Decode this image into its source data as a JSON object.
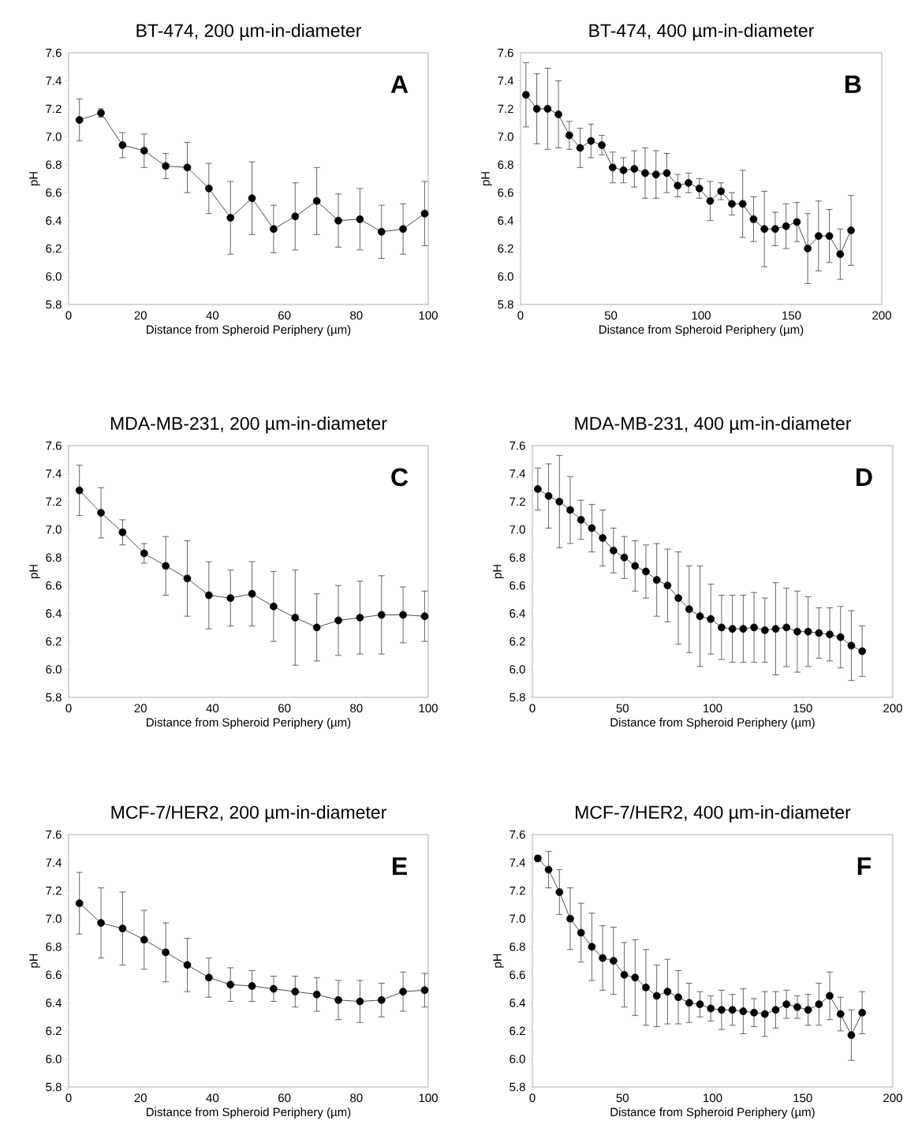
{
  "chart_data": [
    {
      "type": "line",
      "title": "BT-474, 200 µm-in-diameter",
      "xlabel": "Distance from Spheroid Periphery (µm)",
      "ylabel": "pH",
      "annotations": [
        "A"
      ],
      "color": "#000000",
      "marker": "circle",
      "x": [
        3,
        9,
        15,
        21,
        27,
        33,
        39,
        45,
        51,
        57,
        63,
        69,
        75,
        81,
        87,
        93,
        99
      ],
      "values": [
        7.12,
        7.17,
        6.94,
        6.9,
        6.79,
        6.78,
        6.63,
        6.42,
        6.56,
        6.34,
        6.43,
        6.54,
        6.4,
        6.41,
        6.32,
        6.34,
        6.45
      ],
      "errors": [
        0.15,
        0.03,
        0.09,
        0.12,
        0.09,
        0.18,
        0.18,
        0.26,
        0.26,
        0.17,
        0.24,
        0.24,
        0.19,
        0.22,
        0.19,
        0.18,
        0.23
      ],
      "xlim": [
        0,
        100
      ],
      "xticks": [
        0,
        20,
        40,
        60,
        80,
        100
      ],
      "ylim": [
        5.8,
        7.6
      ],
      "yticks": [
        {
          "value": 5.8,
          "label": "5.8"
        },
        {
          "value": 6.0,
          "label": "6.0"
        },
        {
          "value": 6.2,
          "label": "6.2"
        },
        {
          "value": 6.4,
          "label": "6.4"
        },
        {
          "value": 6.6,
          "label": "6.6"
        },
        {
          "value": 6.8,
          "label": "6.8"
        },
        {
          "value": 7.0,
          "label": "7.0"
        },
        {
          "value": 7.2,
          "label": "7.2"
        },
        {
          "value": 7.4,
          "label": "7.4"
        },
        {
          "value": 7.6,
          "label": "7.6"
        }
      ]
    },
    {
      "type": "line",
      "title": "BT-474, 400 µm-in-diameter",
      "xlabel": "Distance from Spheroid Periphery (µm)",
      "ylabel": "pH",
      "annotations": [
        "B"
      ],
      "color": "#000000",
      "marker": "circle",
      "x": [
        3,
        9,
        15,
        21,
        27,
        33,
        39,
        45,
        51,
        57,
        63,
        69,
        75,
        81,
        87,
        93,
        99,
        105,
        111,
        117,
        123,
        129,
        135,
        141,
        147,
        153,
        159,
        165,
        171,
        177,
        183
      ],
      "values": [
        7.3,
        7.2,
        7.2,
        7.16,
        7.01,
        6.92,
        6.97,
        6.94,
        6.78,
        6.76,
        6.77,
        6.74,
        6.73,
        6.74,
        6.65,
        6.67,
        6.63,
        6.54,
        6.61,
        6.52,
        6.52,
        6.41,
        6.34,
        6.34,
        6.36,
        6.39,
        6.2,
        6.29,
        6.29,
        6.16,
        6.33
      ],
      "errors": [
        0.23,
        0.25,
        0.29,
        0.24,
        0.1,
        0.14,
        0.12,
        0.07,
        0.11,
        0.09,
        0.13,
        0.18,
        0.17,
        0.14,
        0.08,
        0.07,
        0.07,
        0.14,
        0.06,
        0.08,
        0.24,
        0.16,
        0.27,
        0.12,
        0.16,
        0.14,
        0.25,
        0.25,
        0.19,
        0.18,
        0.25
      ],
      "xlim": [
        0,
        200
      ],
      "xticks": [
        0,
        50,
        100,
        150,
        200
      ],
      "ylim": [
        5.8,
        7.6
      ],
      "yticks": [
        {
          "value": 5.8,
          "label": "5.8"
        },
        {
          "value": 6.0,
          "label": "6.0"
        },
        {
          "value": 6.2,
          "label": "6.2"
        },
        {
          "value": 6.4,
          "label": "6.4"
        },
        {
          "value": 6.6,
          "label": "6.6"
        },
        {
          "value": 6.8,
          "label": "6.8"
        },
        {
          "value": 7.0,
          "label": "7.0"
        },
        {
          "value": 7.2,
          "label": "7.2"
        },
        {
          "value": 7.4,
          "label": "7.4"
        },
        {
          "value": 7.6,
          "label": "7.6"
        }
      ]
    },
    {
      "type": "line",
      "title": "MDA-MB-231, 200 µm-in-diameter",
      "xlabel": "Distance from Spheroid Periphery (µm)",
      "ylabel": "pH",
      "annotations": [
        "C"
      ],
      "color": "#000000",
      "marker": "circle",
      "x": [
        3,
        9,
        15,
        21,
        27,
        33,
        39,
        45,
        51,
        57,
        63,
        69,
        75,
        81,
        87,
        93,
        99
      ],
      "values": [
        7.28,
        7.12,
        6.98,
        6.83,
        6.74,
        6.65,
        6.53,
        6.51,
        6.54,
        6.45,
        6.37,
        6.3,
        6.35,
        6.37,
        6.39,
        6.39,
        6.38
      ],
      "errors": [
        0.18,
        0.18,
        0.09,
        0.07,
        0.21,
        0.27,
        0.24,
        0.2,
        0.23,
        0.25,
        0.34,
        0.24,
        0.25,
        0.26,
        0.28,
        0.2,
        0.18
      ],
      "xlim": [
        0,
        100
      ],
      "xticks": [
        0,
        20,
        40,
        60,
        80,
        100
      ],
      "ylim": [
        5.8,
        7.6
      ],
      "yticks": [
        {
          "value": 5.8,
          "label": "5.8"
        },
        {
          "value": 6.0,
          "label": "6.0"
        },
        {
          "value": 6.2,
          "label": "6.2"
        },
        {
          "value": 6.4,
          "label": "6.4"
        },
        {
          "value": 6.6,
          "label": "6.6"
        },
        {
          "value": 6.8,
          "label": "6.8"
        },
        {
          "value": 7.0,
          "label": "7.0"
        },
        {
          "value": 7.2,
          "label": "7.2"
        },
        {
          "value": 7.4,
          "label": "7.4"
        },
        {
          "value": 7.6,
          "label": "7.6"
        }
      ]
    },
    {
      "type": "line",
      "title": "MDA-MB-231, 400 µm-in-diameter",
      "xlabel": "Distance from Spheroid Periphery (µm)",
      "ylabel": "pH",
      "annotations": [
        "D"
      ],
      "color": "#000000",
      "marker": "circle",
      "x": [
        3,
        9,
        15,
        21,
        27,
        33,
        39,
        45,
        51,
        57,
        63,
        69,
        75,
        81,
        87,
        93,
        99,
        105,
        111,
        117,
        123,
        129,
        135,
        141,
        147,
        153,
        159,
        165,
        171,
        177,
        183
      ],
      "values": [
        7.29,
        7.24,
        7.2,
        7.14,
        7.07,
        7.01,
        6.94,
        6.85,
        6.8,
        6.74,
        6.7,
        6.64,
        6.6,
        6.51,
        6.43,
        6.38,
        6.36,
        6.3,
        6.29,
        6.29,
        6.3,
        6.28,
        6.29,
        6.3,
        6.27,
        6.27,
        6.26,
        6.25,
        6.23,
        6.17,
        6.13
      ],
      "errors": [
        0.15,
        0.23,
        0.33,
        0.24,
        0.14,
        0.17,
        0.2,
        0.16,
        0.15,
        0.18,
        0.19,
        0.26,
        0.26,
        0.33,
        0.31,
        0.36,
        0.25,
        0.23,
        0.24,
        0.24,
        0.25,
        0.23,
        0.33,
        0.28,
        0.29,
        0.25,
        0.18,
        0.19,
        0.22,
        0.25,
        0.18
      ],
      "xlim": [
        0,
        200
      ],
      "xticks": [
        0,
        50,
        100,
        150,
        200
      ],
      "ylim": [
        5.8,
        7.6
      ],
      "yticks": [
        {
          "value": 5.8,
          "label": "5.8"
        },
        {
          "value": 6.0,
          "label": "6.0"
        },
        {
          "value": 6.2,
          "label": "6.2"
        },
        {
          "value": 6.4,
          "label": "6.4"
        },
        {
          "value": 6.6,
          "label": "6.6"
        },
        {
          "value": 6.8,
          "label": "6.8"
        },
        {
          "value": 7.0,
          "label": "7.0"
        },
        {
          "value": 7.2,
          "label": "7.2"
        },
        {
          "value": 7.4,
          "label": "7.4"
        },
        {
          "value": 7.6,
          "label": "7.6"
        }
      ]
    },
    {
      "type": "line",
      "title": "MCF-7/HER2, 200 µm-in-diameter",
      "xlabel": "Distance from Spheroid Periphery (µm)",
      "ylabel": "pH",
      "annotations": [
        "E"
      ],
      "color": "#000000",
      "marker": "circle",
      "x": [
        3,
        9,
        15,
        21,
        27,
        33,
        39,
        45,
        51,
        57,
        63,
        69,
        75,
        81,
        87,
        93,
        99
      ],
      "values": [
        7.11,
        6.97,
        6.93,
        6.85,
        6.76,
        6.67,
        6.58,
        6.53,
        6.52,
        6.5,
        6.48,
        6.46,
        6.42,
        6.41,
        6.42,
        6.48,
        6.49
      ],
      "errors": [
        0.22,
        0.25,
        0.26,
        0.21,
        0.21,
        0.19,
        0.14,
        0.12,
        0.11,
        0.09,
        0.11,
        0.12,
        0.14,
        0.15,
        0.12,
        0.14,
        0.12
      ],
      "xlim": [
        0,
        100
      ],
      "xticks": [
        0,
        20,
        40,
        60,
        80,
        100
      ],
      "ylim": [
        5.8,
        7.6
      ],
      "yticks": [
        {
          "value": 5.8,
          "label": "5.8"
        },
        {
          "value": 6.0,
          "label": "6.0"
        },
        {
          "value": 6.2,
          "label": "6.2"
        },
        {
          "value": 6.4,
          "label": "6.4"
        },
        {
          "value": 6.6,
          "label": "6.6"
        },
        {
          "value": 6.8,
          "label": "6.8"
        },
        {
          "value": 7.0,
          "label": "7.0"
        },
        {
          "value": 7.2,
          "label": "7.2"
        },
        {
          "value": 7.4,
          "label": "7.4"
        },
        {
          "value": 7.6,
          "label": "7.6"
        }
      ]
    },
    {
      "type": "line",
      "title": "MCF-7/HER2, 400 µm-in-diameter",
      "xlabel": "Distance from Spheroid Periphery (µm)",
      "ylabel": "pH",
      "annotations": [
        "F"
      ],
      "color": "#000000",
      "marker": "circle",
      "x": [
        3,
        9,
        15,
        21,
        27,
        33,
        39,
        45,
        51,
        57,
        63,
        69,
        75,
        81,
        87,
        93,
        99,
        105,
        111,
        117,
        123,
        129,
        135,
        141,
        147,
        153,
        159,
        165,
        171,
        177,
        183
      ],
      "values": [
        7.43,
        7.35,
        7.19,
        7.0,
        6.9,
        6.8,
        6.72,
        6.7,
        6.6,
        6.58,
        6.51,
        6.45,
        6.48,
        6.44,
        6.4,
        6.39,
        6.36,
        6.35,
        6.35,
        6.34,
        6.33,
        6.32,
        6.35,
        6.39,
        6.37,
        6.35,
        6.39,
        6.45,
        6.32,
        6.17,
        6.33
      ],
      "errors": [
        0.02,
        0.13,
        0.16,
        0.22,
        0.21,
        0.24,
        0.23,
        0.24,
        0.23,
        0.27,
        0.27,
        0.22,
        0.23,
        0.19,
        0.14,
        0.09,
        0.09,
        0.14,
        0.11,
        0.16,
        0.1,
        0.16,
        0.13,
        0.1,
        0.08,
        0.11,
        0.15,
        0.17,
        0.12,
        0.18,
        0.15
      ],
      "xlim": [
        0,
        200
      ],
      "xticks": [
        0,
        50,
        100,
        150,
        200
      ],
      "ylim": [
        5.8,
        7.6
      ],
      "yticks": [
        {
          "value": 5.8,
          "label": "5.8"
        },
        {
          "value": 6.0,
          "label": "6.0"
        },
        {
          "value": 6.2,
          "label": "6.2"
        },
        {
          "value": 6.4,
          "label": "6.4"
        },
        {
          "value": 6.6,
          "label": "6.6"
        },
        {
          "value": 6.8,
          "label": "6.8"
        },
        {
          "value": 7.0,
          "label": "7.0"
        },
        {
          "value": 7.2,
          "label": "7.2"
        },
        {
          "value": 7.4,
          "label": "7.4"
        },
        {
          "value": 7.6,
          "label": "7.6"
        }
      ]
    }
  ]
}
